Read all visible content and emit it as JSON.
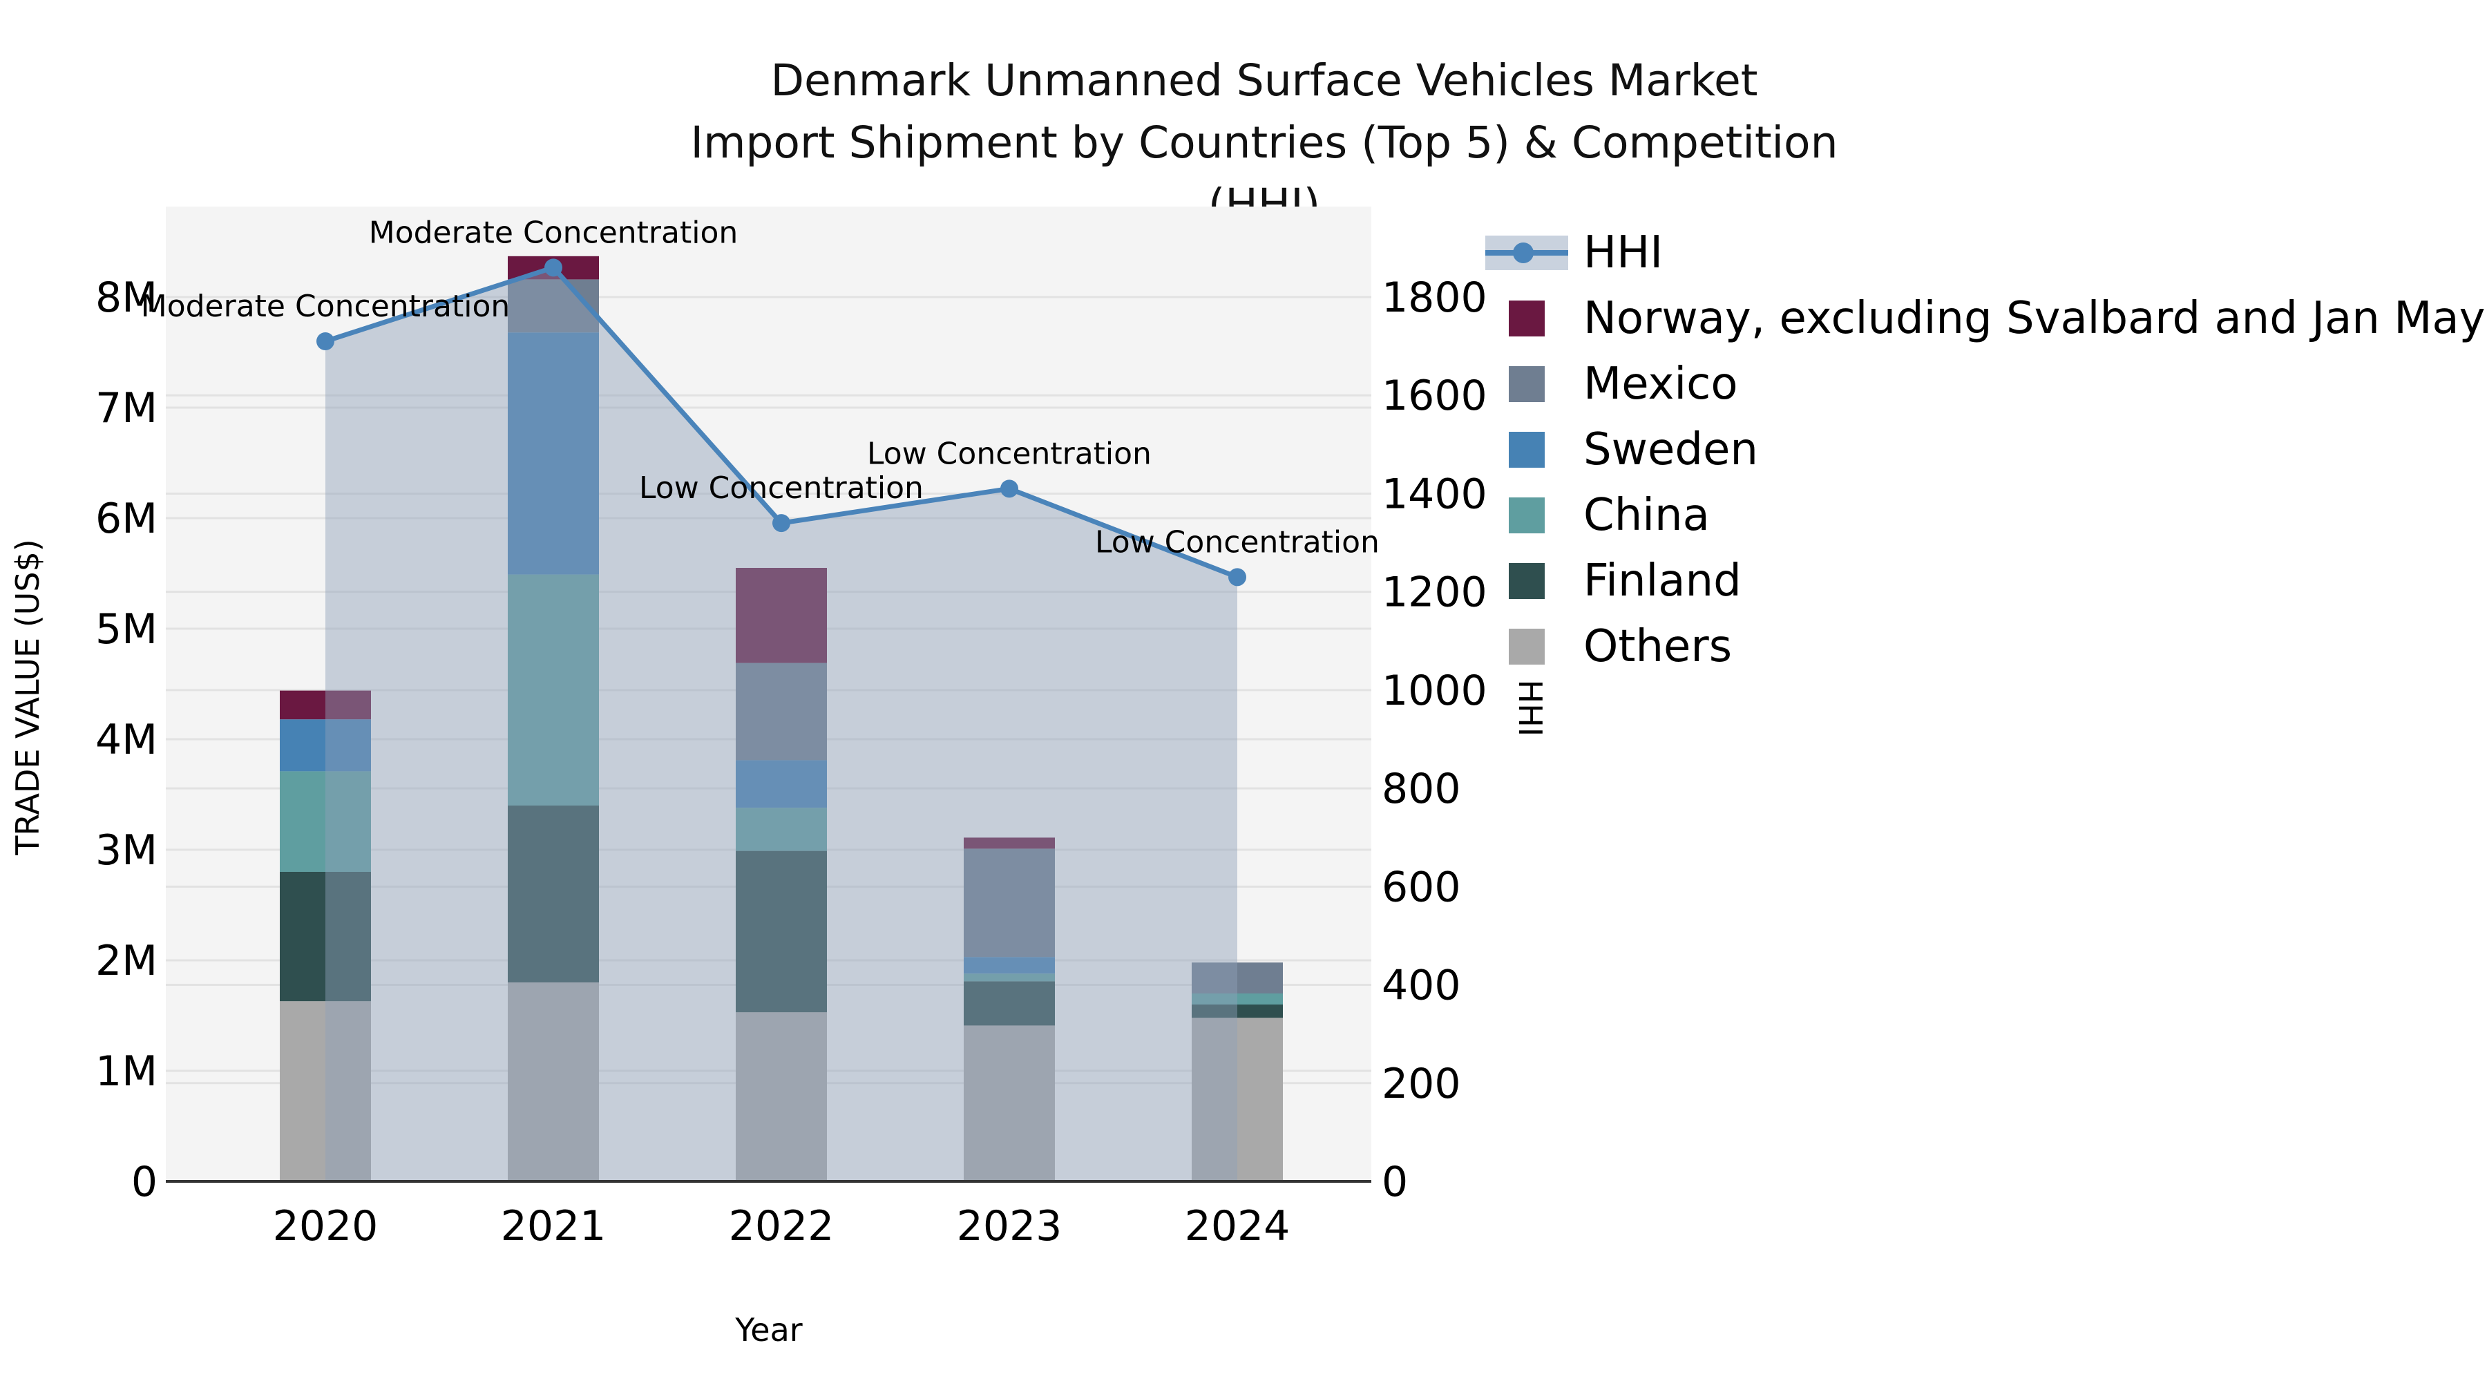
{
  "title": {
    "line1": "Denmark Unmanned Surface Vehicles Market",
    "line2": "Import Shipment by Countries (Top 5) & Competition (HHI)"
  },
  "axes": {
    "left_label": "TRADE VALUE (US$)",
    "right_label": "HHI",
    "x_label": "Year",
    "left_tick_labels": [
      "0",
      "1M",
      "2M",
      "3M",
      "4M",
      "5M",
      "6M",
      "7M",
      "8M"
    ],
    "right_tick_labels": [
      "0",
      "200",
      "400",
      "600",
      "800",
      "1000",
      "1200",
      "1400",
      "1600",
      "1800"
    ]
  },
  "legend": {
    "items": [
      {
        "label": "HHI",
        "type": "line",
        "color": "#4A84BA",
        "band_color": "#C9D2DE"
      },
      {
        "label": "Norway, excluding Svalbard and Jan Mayen",
        "type": "swatch",
        "color": "#6A1841"
      },
      {
        "label": "Mexico",
        "type": "swatch",
        "color": "#6F7E91"
      },
      {
        "label": "Sweden",
        "type": "swatch",
        "color": "#4682B4"
      },
      {
        "label": "China",
        "type": "swatch",
        "color": "#5F9EA0"
      },
      {
        "label": "Finland",
        "type": "swatch",
        "color": "#2F4F4F"
      },
      {
        "label": "Others",
        "type": "swatch",
        "color": "#A9A9A9"
      }
    ]
  },
  "chart_data": {
    "type": "bar",
    "subtype": "stacked-bars-with-line-overlay",
    "title": "Denmark Unmanned Surface Vehicles Market — Import Shipment by Countries (Top 5) & Competition (HHI)",
    "xlabel": "Year",
    "ylabel_left": "TRADE VALUE (US$)",
    "ylabel_right": "HHI",
    "categories": [
      "2020",
      "2021",
      "2022",
      "2023",
      "2024"
    ],
    "value_unit": "millions US$",
    "stack_order_bottom_to_top": [
      "Others",
      "Finland",
      "China",
      "Sweden",
      "Mexico",
      "Norway, excluding Svalbard and Jan Mayen"
    ],
    "series": [
      {
        "name": "Others",
        "color": "#A9A9A9",
        "values": [
          1.63,
          1.8,
          1.53,
          1.41,
          1.48
        ]
      },
      {
        "name": "Finland",
        "color": "#2F4F4F",
        "values": [
          1.17,
          1.6,
          1.46,
          0.4,
          0.12
        ]
      },
      {
        "name": "China",
        "color": "#5F9EA0",
        "values": [
          0.91,
          2.09,
          0.39,
          0.07,
          0.1
        ]
      },
      {
        "name": "Sweden",
        "color": "#4682B4",
        "values": [
          0.47,
          2.19,
          0.43,
          0.15,
          0.0
        ]
      },
      {
        "name": "Mexico",
        "color": "#6F7E91",
        "values": [
          0.0,
          0.48,
          0.88,
          0.98,
          0.28
        ]
      },
      {
        "name": "Norway, excluding Svalbard and Jan Mayen",
        "color": "#6A1841",
        "values": [
          0.26,
          0.21,
          0.86,
          0.1,
          0.0
        ]
      }
    ],
    "bar_totals": [
      4.44,
      8.37,
      5.55,
      3.11,
      1.98
    ],
    "line_series": {
      "name": "HHI",
      "color": "#4A84BA",
      "area_fill": "rgba(141,159,183,0.45)",
      "values": [
        1710,
        1860,
        1340,
        1410,
        1230
      ]
    },
    "annotations": [
      "Moderate Concentration",
      "Moderate Concentration",
      "Low Concentration",
      "Low Concentration",
      "Low Concentration"
    ],
    "ylim_left_millions": [
      0,
      8.82
    ],
    "ylim_right_hhi": [
      0,
      1984
    ],
    "left_ticks_millions": [
      0,
      1,
      2,
      3,
      4,
      5,
      6,
      7,
      8
    ],
    "right_ticks_hhi": [
      0,
      200,
      400,
      600,
      800,
      1000,
      1200,
      1400,
      1600,
      1800
    ],
    "grid": true,
    "legend_position": "right",
    "plot_background": "#F4F4F4",
    "gridline_color": "#E2E2E2"
  }
}
